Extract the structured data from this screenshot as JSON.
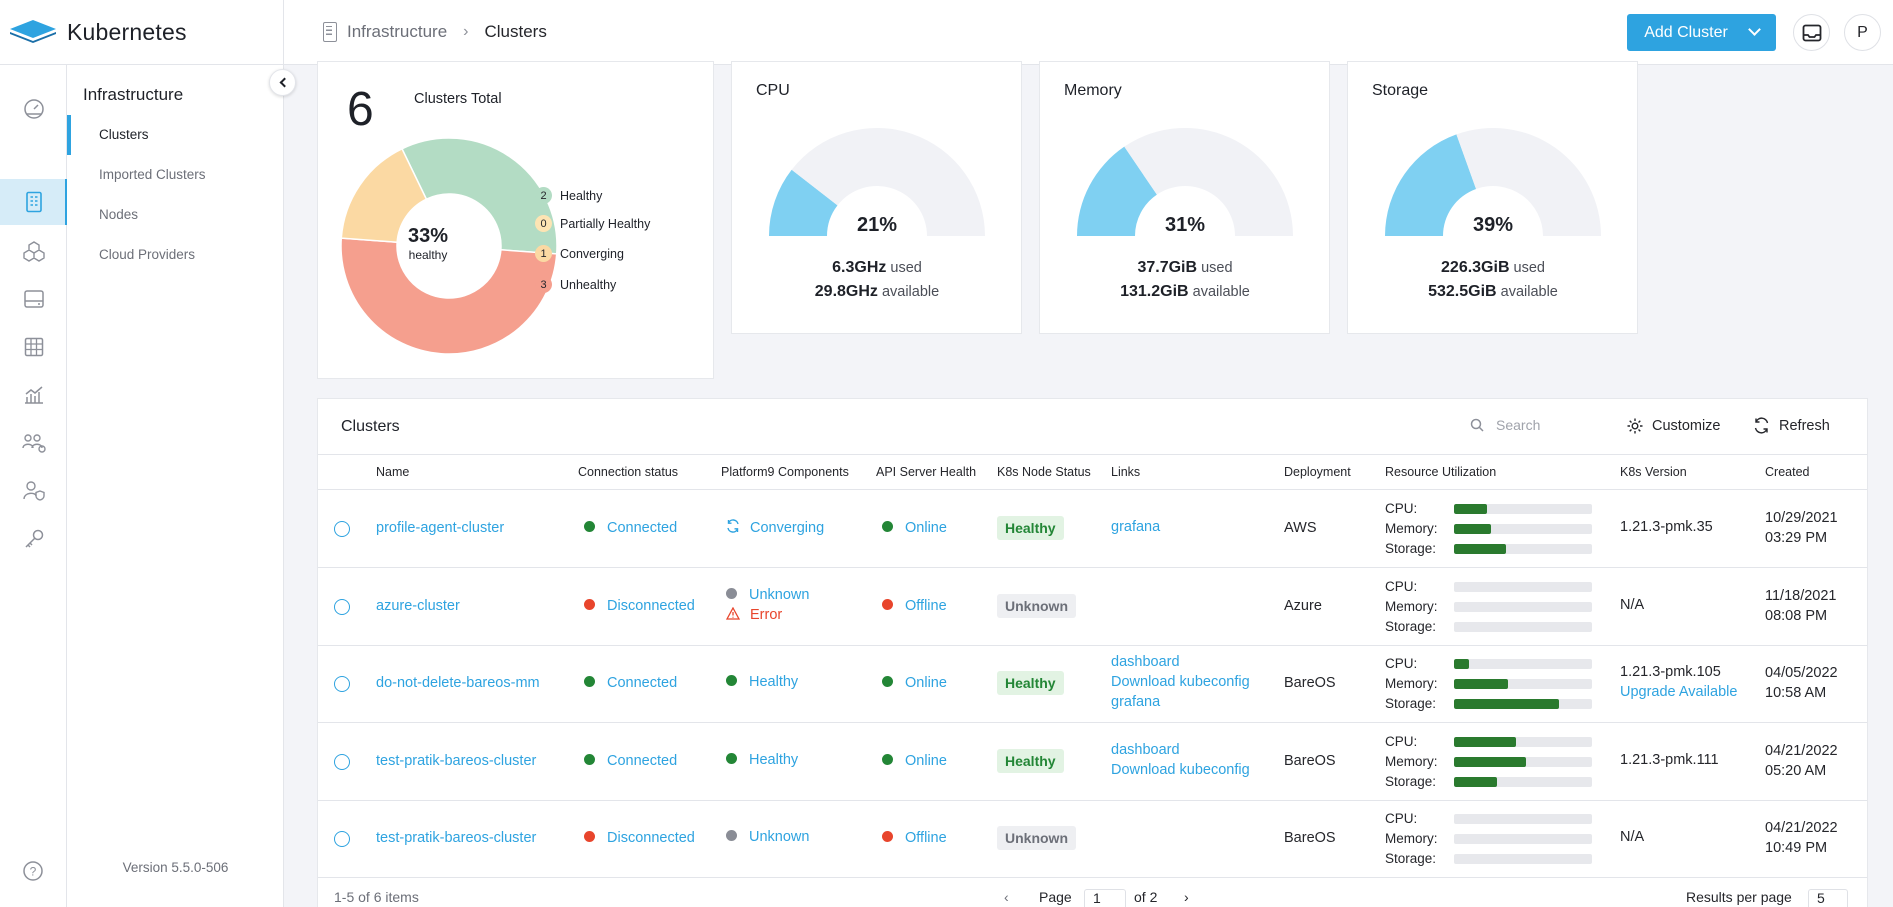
{
  "app": {
    "name": "Kubernetes",
    "version": "Version 5.5.0-506"
  },
  "breadcrumb": {
    "section": "Infrastructure",
    "current": "Clusters"
  },
  "header": {
    "add_button": "Add Cluster",
    "avatar_initial": "P"
  },
  "rail_icons": [
    "dashboard-icon",
    "infrastructure-icon",
    "apps-icon",
    "storage-icon",
    "grid-icon",
    "monitoring-icon",
    "users-groups-icon",
    "user-security-icon",
    "key-icon"
  ],
  "subnav": {
    "title": "Infrastructure",
    "items": [
      {
        "label": "Clusters",
        "active": true
      },
      {
        "label": "Imported Clusters",
        "active": false
      },
      {
        "label": "Nodes",
        "active": false
      },
      {
        "label": "Cloud Providers",
        "active": false
      }
    ]
  },
  "summary": {
    "total": "6",
    "total_label": "Clusters Total",
    "healthy_pct": "33%",
    "healthy_label": "healthy",
    "legend": [
      {
        "count": "2",
        "label": "Healthy",
        "value": 2,
        "color": "#b3dcc4"
      },
      {
        "count": "0",
        "label": "Partially Healthy",
        "value": 0,
        "color": "#fde4b3"
      },
      {
        "count": "1",
        "label": "Converging",
        "value": 1,
        "color": "#fbd9a3"
      },
      {
        "count": "3",
        "label": "Unhealthy",
        "value": 3,
        "color": "#f59f8e"
      }
    ]
  },
  "gauges": [
    {
      "title": "CPU",
      "pct_label": "21%",
      "fraction": 0.21,
      "used": "6.3GHz",
      "used_suffix": "used",
      "available": "29.8GHz",
      "available_suffix": "available"
    },
    {
      "title": "Memory",
      "pct_label": "31%",
      "fraction": 0.31,
      "used": "37.7GiB",
      "used_suffix": "used",
      "available": "131.2GiB",
      "available_suffix": "available"
    },
    {
      "title": "Storage",
      "pct_label": "39%",
      "fraction": 0.39,
      "used": "226.3GiB",
      "used_suffix": "used",
      "available": "532.5GiB",
      "available_suffix": "available"
    }
  ],
  "table": {
    "title": "Clusters",
    "search_placeholder": "Search",
    "customize_label": "Customize",
    "refresh_label": "Refresh",
    "columns": [
      "Name",
      "Connection status",
      "Platform9 Components",
      "API Server Health",
      "K8s Node Status",
      "Links",
      "Deployment",
      "Resource Utilization",
      "K8s Version",
      "Created"
    ],
    "ru_labels": [
      "CPU:",
      "Memory:",
      "Storage:"
    ],
    "rows": [
      {
        "name": "profile-agent-cluster",
        "conn": "Connected",
        "conn_state": "green",
        "components": [
          {
            "text": "Converging",
            "state": "converging"
          }
        ],
        "api": "Online",
        "api_state": "green",
        "node_status": "Healthy",
        "node_state": "healthy",
        "links": [
          "grafana"
        ],
        "deployment": "AWS",
        "ru": [
          0.24,
          0.27,
          0.38
        ],
        "version": [
          "1.21.3-pmk.35"
        ],
        "created": [
          "10/29/2021",
          "03:29 PM"
        ]
      },
      {
        "name": "azure-cluster",
        "conn": "Disconnected",
        "conn_state": "red",
        "components": [
          {
            "text": "Unknown",
            "state": "grey"
          },
          {
            "text": "Error",
            "state": "error"
          }
        ],
        "api": "Offline",
        "api_state": "red",
        "node_status": "Unknown",
        "node_state": "unknown",
        "links": [],
        "deployment": "Azure",
        "ru": [
          0,
          0,
          0
        ],
        "version": [
          "N/A"
        ],
        "created": [
          "11/18/2021",
          "08:08 PM"
        ]
      },
      {
        "name": "do-not-delete-bareos-mm",
        "conn": "Connected",
        "conn_state": "green",
        "components": [
          {
            "text": "Healthy",
            "state": "green"
          }
        ],
        "api": "Online",
        "api_state": "green",
        "node_status": "Healthy",
        "node_state": "healthy",
        "links": [
          "dashboard",
          "Download kubeconfig",
          "grafana"
        ],
        "deployment": "BareOS",
        "ru": [
          0.11,
          0.39,
          0.76
        ],
        "version": [
          "1.21.3-pmk.105",
          "Upgrade Available"
        ],
        "created": [
          "04/05/2022",
          "10:58 AM"
        ]
      },
      {
        "name": "test-pratik-bareos-cluster",
        "conn": "Connected",
        "conn_state": "green",
        "components": [
          {
            "text": "Healthy",
            "state": "green"
          }
        ],
        "api": "Online",
        "api_state": "green",
        "node_status": "Healthy",
        "node_state": "healthy",
        "links": [
          "dashboard",
          "Download kubeconfig"
        ],
        "deployment": "BareOS",
        "ru": [
          0.45,
          0.52,
          0.31
        ],
        "version": [
          "1.21.3-pmk.111"
        ],
        "created": [
          "04/21/2022",
          "05:20 AM"
        ]
      },
      {
        "name": "test-pratik-bareos-cluster",
        "conn": "Disconnected",
        "conn_state": "red",
        "components": [
          {
            "text": "Unknown",
            "state": "grey"
          }
        ],
        "api": "Offline",
        "api_state": "red",
        "node_status": "Unknown",
        "node_state": "unknown",
        "links": [],
        "deployment": "BareOS",
        "ru": [
          0,
          0,
          0
        ],
        "version": [
          "N/A"
        ],
        "created": [
          "04/21/2022",
          "10:49 PM"
        ]
      }
    ]
  },
  "pagination": {
    "summary": "1-5 of 6 items",
    "page_label": "Page",
    "page": "1",
    "of_label": "of 2",
    "rpp_label": "Results per page",
    "rpp": "5"
  }
}
